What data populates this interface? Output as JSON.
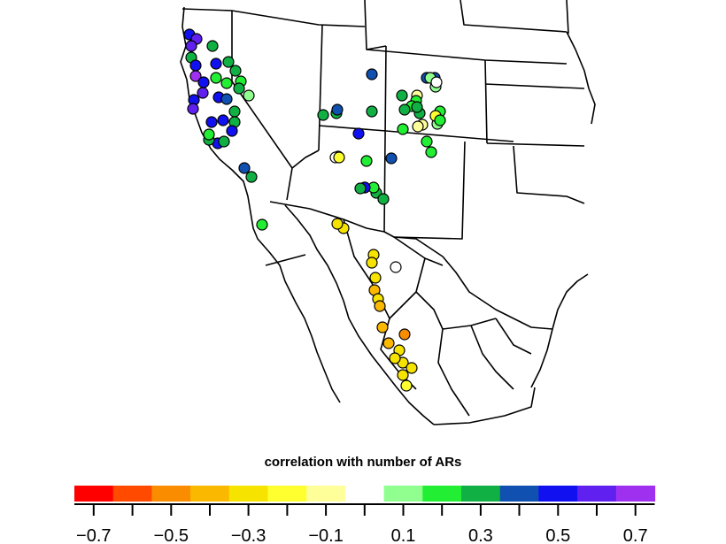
{
  "legend": {
    "title": "correlation with number of ARs",
    "bins": [
      {
        "color": "#ff0000"
      },
      {
        "color": "#ff4a00"
      },
      {
        "color": "#fa8c00"
      },
      {
        "color": "#fbb800"
      },
      {
        "color": "#f7e300"
      },
      {
        "color": "#ffff30"
      },
      {
        "color": "#ffff99"
      },
      {
        "color": "#ffffff"
      },
      {
        "color": "#90ff90"
      },
      {
        "color": "#22ee33"
      },
      {
        "color": "#10b044"
      },
      {
        "color": "#1050b0"
      },
      {
        "color": "#1010f0"
      },
      {
        "color": "#6020f0"
      },
      {
        "color": "#a030f0"
      }
    ],
    "tick_labels": [
      "−0.7",
      "−0.5",
      "−0.3",
      "−0.1",
      "0.1",
      "0.3",
      "0.5",
      "0.7"
    ]
  },
  "stations": [
    {
      "c": "#1010f0"
    },
    {
      "c": "#6020f0"
    },
    {
      "c": "#6020f0"
    },
    {
      "c": "#10b044"
    },
    {
      "c": "#10b044"
    },
    {
      "c": "#1010f0"
    },
    {
      "c": "#1010f0"
    },
    {
      "c": "#a030f0"
    },
    {
      "c": "#10b044"
    },
    {
      "c": "#10b044"
    },
    {
      "c": "#22ee33"
    },
    {
      "c": "#1010f0"
    },
    {
      "c": "#6020f0"
    },
    {
      "c": "#22ee33"
    },
    {
      "c": "#22ee33"
    },
    {
      "c": "#10b044"
    },
    {
      "c": "#90ff90"
    },
    {
      "c": "#1010f0"
    },
    {
      "c": "#1010f0"
    },
    {
      "c": "#6020f0"
    },
    {
      "c": "#10b044"
    },
    {
      "c": "#1010f0"
    },
    {
      "c": "#1010f0"
    },
    {
      "c": "#10b044"
    },
    {
      "c": "#1010f0"
    },
    {
      "c": "#1010f0"
    },
    {
      "c": "#10b044"
    },
    {
      "c": "#10b044"
    },
    {
      "c": "#22ee33"
    },
    {
      "c": "#1050b0"
    },
    {
      "c": "#10b044"
    },
    {
      "c": "#1050b0"
    },
    {
      "c": "#22ee33"
    },
    {
      "c": "#10b044"
    },
    {
      "c": "#10b044"
    },
    {
      "c": "#1050b0"
    },
    {
      "c": "#10b044"
    },
    {
      "c": "#1050b0"
    },
    {
      "c": "#10b044"
    },
    {
      "c": "#ffff99"
    },
    {
      "c": "#22ee33"
    },
    {
      "c": "#1050b0"
    },
    {
      "c": "#1050b0"
    },
    {
      "c": "#22ee33"
    },
    {
      "c": "#22ee33"
    },
    {
      "c": "#90ff90"
    },
    {
      "c": "#90ff90"
    },
    {
      "c": "#ffffff"
    },
    {
      "c": "#ffffff"
    },
    {
      "c": "#1010f0"
    },
    {
      "c": "#ffffff"
    },
    {
      "c": "#1050b0"
    },
    {
      "c": "#22ee33"
    },
    {
      "c": "#1050b0"
    },
    {
      "c": "#10b044"
    },
    {
      "c": "#10b044"
    },
    {
      "c": "#22ee33"
    },
    {
      "c": "#ffff30"
    },
    {
      "c": "#22ee33"
    },
    {
      "c": "#22ee33"
    },
    {
      "c": "#90ff90"
    },
    {
      "c": "#10b044"
    },
    {
      "c": "#ffff99"
    },
    {
      "c": "#ffff30"
    },
    {
      "c": "#ffff99"
    },
    {
      "c": "#22ee33"
    },
    {
      "c": "#22ee33"
    },
    {
      "c": "#10b044"
    },
    {
      "c": "#10b044"
    },
    {
      "c": "#1010f0"
    },
    {
      "c": "#10b044"
    },
    {
      "c": "#f7e300"
    },
    {
      "c": "#f7e300"
    },
    {
      "c": "#ffffff"
    },
    {
      "c": "#f7e300"
    },
    {
      "c": "#fbb800"
    },
    {
      "c": "#f7e300"
    },
    {
      "c": "#fbb800"
    },
    {
      "c": "#fbb800"
    },
    {
      "c": "#fa8c00"
    },
    {
      "c": "#fbb800"
    },
    {
      "c": "#f7e300"
    },
    {
      "c": "#f7e300"
    },
    {
      "c": "#f7e300"
    },
    {
      "c": "#f7e300"
    },
    {
      "c": "#ffff30"
    },
    {
      "c": "#f7e300"
    },
    {
      "c": "#f7e300"
    },
    {
      "c": "#f7e300"
    }
  ]
}
